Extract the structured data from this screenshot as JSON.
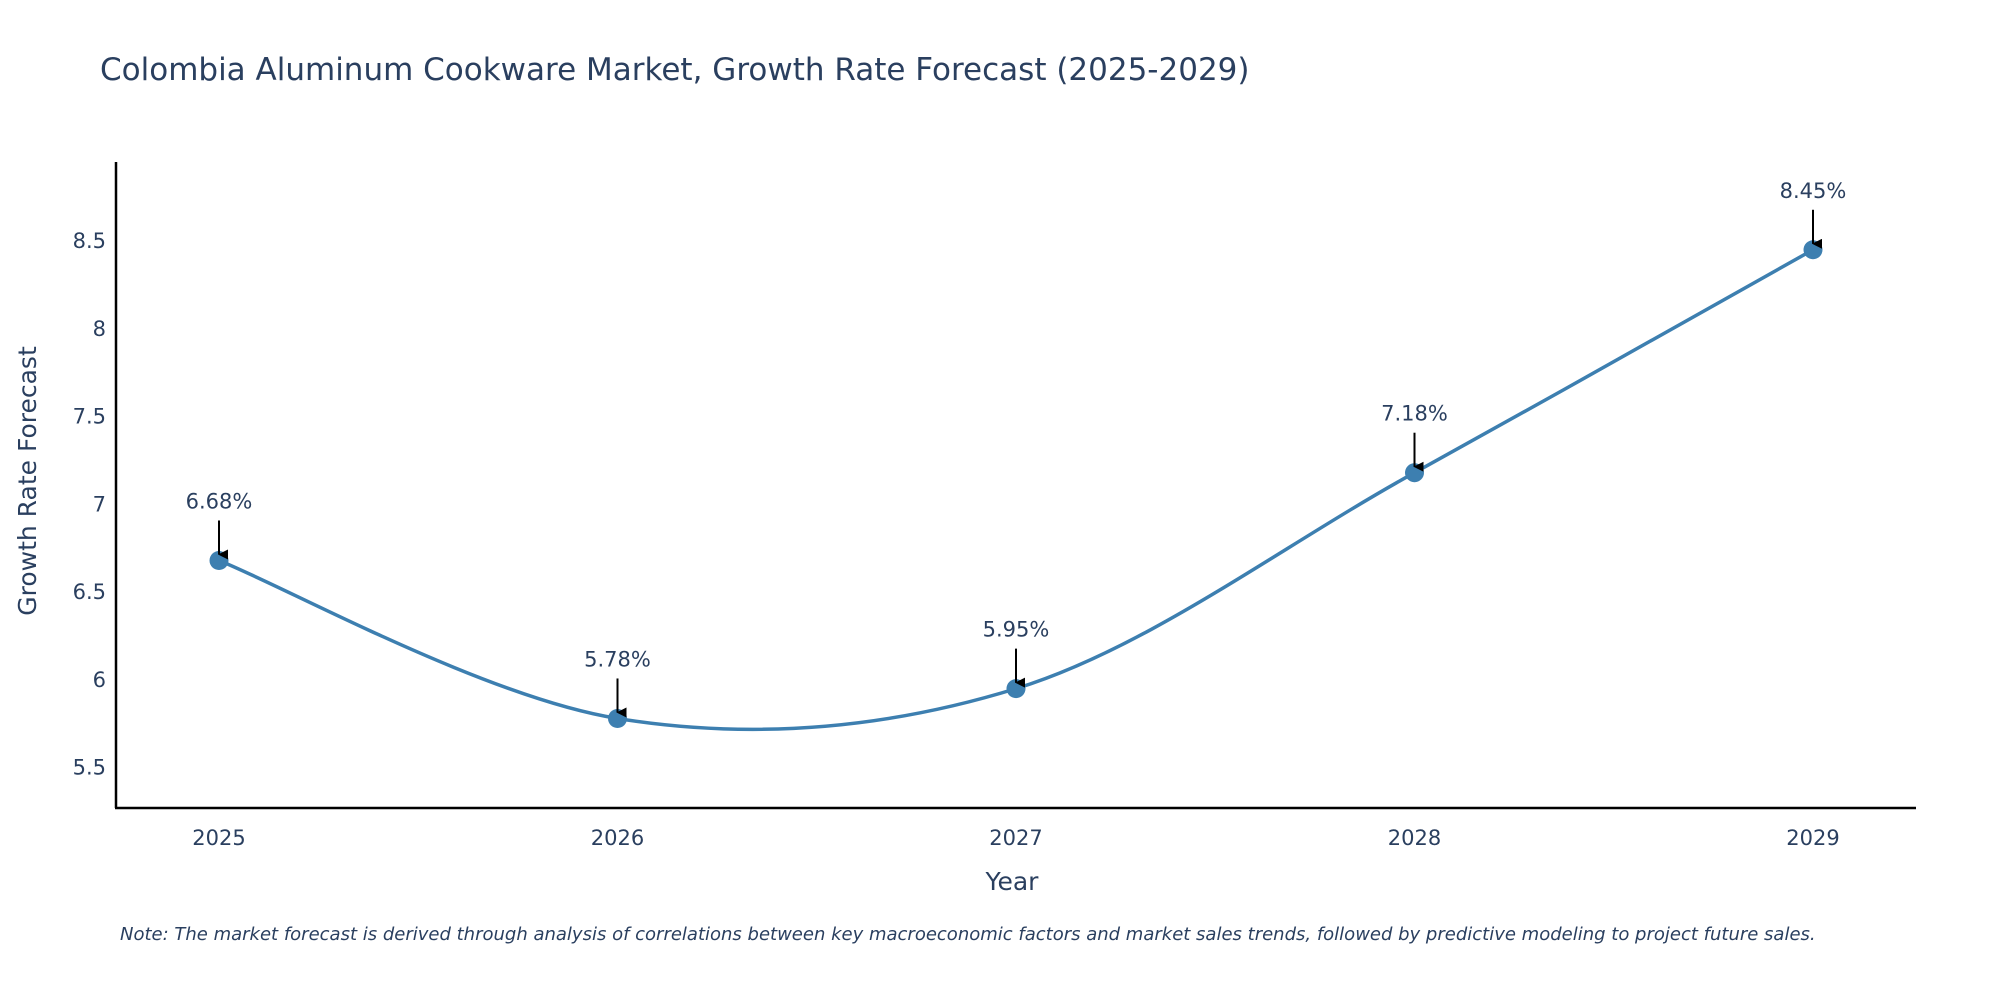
{
  "chart_data": {
    "type": "line",
    "title": "Colombia Aluminum Cookware Market, Growth Rate Forecast (2025-2029)",
    "xlabel": "Year",
    "ylabel": "Growth Rate Forecast",
    "categories": [
      "2025",
      "2026",
      "2027",
      "2028",
      "2029"
    ],
    "series": [
      {
        "name": "Growth Rate Forecast",
        "values": [
          6.68,
          5.78,
          5.95,
          7.18,
          8.45
        ],
        "color": "#3d7fb0"
      }
    ],
    "data_labels": [
      "6.68%",
      "5.78%",
      "5.95%",
      "7.18%",
      "8.45%"
    ],
    "y_ticks": [
      5.5,
      6,
      6.5,
      7,
      7.5,
      8,
      8.5
    ],
    "y_tick_labels": [
      "5.5",
      "6",
      "6.5",
      "7",
      "7.5",
      "8",
      "8.5"
    ],
    "ylim": [
      5.27,
      8.95
    ],
    "grid": false,
    "legend": "none",
    "note": "Note: The market forecast is derived through analysis of correlations between key macroeconomic factors and market sales trends, followed by predictive modeling to project future sales."
  },
  "colors": {
    "line": "#3d7fb0",
    "text": "#2a3f5f",
    "axis": "#000000",
    "arrow": "#000000"
  }
}
